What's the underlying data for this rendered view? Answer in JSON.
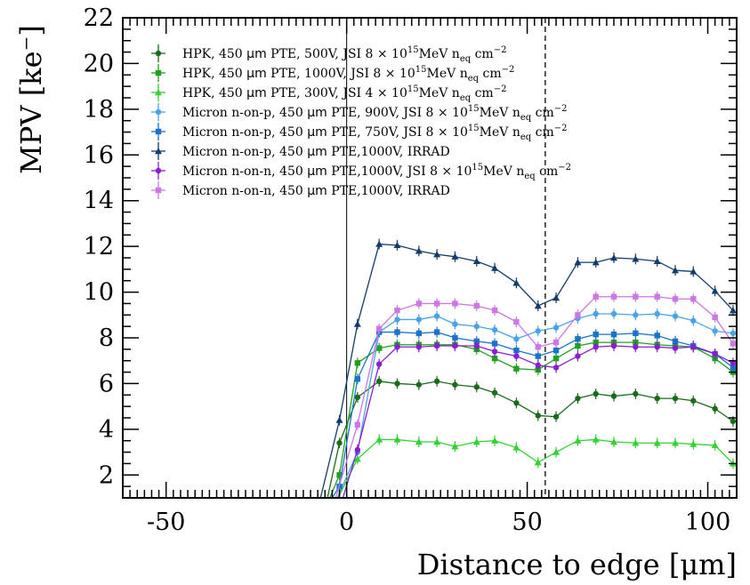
{
  "chart_data": {
    "type": "line",
    "title": "",
    "xlabel": "Distance to edge [μm]",
    "ylabel": "MPV [ke⁻]",
    "xlim": [
      -62,
      108
    ],
    "ylim": [
      1,
      22
    ],
    "x_ticks": [
      -50,
      0,
      50,
      100
    ],
    "x_tick_labels": [
      "-50",
      "0",
      "50",
      "100"
    ],
    "y_ticks": [
      2,
      4,
      6,
      8,
      10,
      12,
      14,
      16,
      18,
      20,
      22
    ],
    "y_tick_labels": [
      "2",
      "4",
      "6",
      "8",
      "10",
      "12",
      "14",
      "16",
      "18",
      "20",
      "22"
    ],
    "grid": false,
    "legend_position": "top-left",
    "reference_lines": [
      {
        "orientation": "vertical",
        "x": 0,
        "style": "solid"
      },
      {
        "orientation": "vertical",
        "x": 55,
        "style": "dashed"
      }
    ],
    "series": [
      {
        "name": "HPK, 450 μm PTE, 500V, JSI 8 × 10¹⁵MeV n_eq cm⁻²",
        "legend_parts": [
          "HPK, 450 ",
          "μm",
          " PTE, 500V, JSI 8 × 10",
          "15",
          "MeV n",
          "eq",
          " cm",
          "−2"
        ],
        "color": "#1a6b1a",
        "marker": "circle",
        "x": [
          -6,
          -2,
          3,
          9,
          14,
          20,
          25,
          30,
          36,
          41,
          47,
          53,
          58,
          64,
          69,
          74,
          80,
          86,
          91,
          96,
          102,
          107
        ],
        "y": [
          0.5,
          3.4,
          5.4,
          6.1,
          6.0,
          5.95,
          6.1,
          5.95,
          5.85,
          5.6,
          5.15,
          4.6,
          4.55,
          5.35,
          5.55,
          5.45,
          5.55,
          5.35,
          5.35,
          5.25,
          4.9,
          4.35
        ]
      },
      {
        "name": "HPK, 450 μm PTE, 1000V, JSI 8 × 10¹⁵MeV n_eq cm⁻²",
        "legend_parts": [
          "HPK, 450 ",
          "μm",
          " PTE, 1000V, JSI 8 × 10",
          "15",
          "MeV n",
          "eq",
          " cm",
          "−2"
        ],
        "color": "#1fa01f",
        "marker": "square",
        "x": [
          -6,
          -2,
          3,
          9,
          14,
          20,
          25,
          30,
          36,
          41,
          47,
          53,
          58,
          64,
          69,
          74,
          80,
          86,
          91,
          96,
          102,
          107
        ],
        "y": [
          0.5,
          2.0,
          6.9,
          7.55,
          7.7,
          7.7,
          7.7,
          7.7,
          7.5,
          7.1,
          6.65,
          6.6,
          7.1,
          7.65,
          7.8,
          7.8,
          7.8,
          7.7,
          7.65,
          7.6,
          7.1,
          6.5
        ]
      },
      {
        "name": "HPK, 450 μm PTE, 300V, JSI 4 × 10¹⁵MeV n_eq cm⁻²",
        "legend_parts": [
          "HPK, 450 ",
          "μm",
          " PTE, 300V, JSI 4 × 10",
          "15",
          "MeV n",
          "eq",
          " cm",
          "−2"
        ],
        "color": "#33d233",
        "marker": "triangle",
        "x": [
          -4,
          3,
          9,
          14,
          20,
          25,
          30,
          36,
          41,
          47,
          53,
          58,
          64,
          69,
          74,
          80,
          86,
          91,
          96,
          102,
          107
        ],
        "y": [
          0.5,
          2.7,
          3.55,
          3.55,
          3.45,
          3.45,
          3.25,
          3.45,
          3.5,
          3.2,
          2.55,
          3.0,
          3.5,
          3.55,
          3.45,
          3.4,
          3.4,
          3.4,
          3.35,
          3.3,
          2.5
        ]
      },
      {
        "name": "Micron n-on-p, 450 μm PTE, 900V, JSI 8 × 10¹⁵MeV n_eq cm⁻²",
        "legend_parts": [
          "Micron n-on-p, 450 ",
          "μm",
          " PTE, 900V, JSI 8 × 10",
          "15",
          "MeV n",
          "eq",
          " cm",
          "−2"
        ],
        "color": "#4aa3e8",
        "marker": "circle",
        "x": [
          -4,
          3,
          9,
          14,
          20,
          25,
          30,
          36,
          41,
          47,
          53,
          58,
          64,
          69,
          74,
          80,
          86,
          91,
          96,
          102,
          107
        ],
        "y": [
          0.5,
          3.0,
          8.25,
          8.8,
          8.8,
          8.95,
          8.6,
          8.5,
          8.35,
          7.95,
          8.3,
          8.45,
          8.85,
          9.05,
          9.05,
          9.0,
          9.05,
          8.95,
          8.75,
          8.3,
          8.2
        ]
      },
      {
        "name": "Micron n-on-p, 450 μm PTE, 750V, JSI 8 × 10¹⁵MeV n_eq cm⁻²",
        "legend_parts": [
          "Micron n-on-p, 450 ",
          "μm",
          " PTE, 750V, JSI 8 × 10",
          "15",
          "MeV n",
          "eq",
          " cm",
          "−2"
        ],
        "color": "#1a72c9",
        "marker": "square",
        "x": [
          -6,
          -2,
          3,
          9,
          14,
          20,
          25,
          30,
          36,
          41,
          47,
          53,
          58,
          64,
          69,
          74,
          80,
          86,
          91,
          96,
          102,
          107
        ],
        "y": [
          0.5,
          1.5,
          6.2,
          8.25,
          8.25,
          8.2,
          8.25,
          8.0,
          7.85,
          7.75,
          7.45,
          7.2,
          7.45,
          7.95,
          8.15,
          8.15,
          8.2,
          8.1,
          7.85,
          7.65,
          7.3,
          6.7
        ]
      },
      {
        "name": "Micron n-on-p, 450 μm PTE,1000V, IRRAD",
        "legend_parts": [
          "Micron n-on-p, 450 ",
          "μm",
          " PTE,1000V, IRRAD",
          "",
          "",
          "",
          "",
          ""
        ],
        "color": "#123d6b",
        "marker": "triangle",
        "x": [
          -8,
          -2,
          3,
          9,
          14,
          20,
          25,
          30,
          36,
          41,
          47,
          53,
          58,
          64,
          69,
          74,
          80,
          86,
          91,
          96,
          102,
          107
        ],
        "y": [
          0.5,
          4.4,
          8.6,
          12.1,
          12.05,
          11.8,
          11.65,
          11.55,
          11.35,
          11.05,
          10.4,
          9.4,
          9.75,
          11.3,
          11.3,
          11.5,
          11.45,
          11.35,
          10.95,
          10.9,
          10.05,
          9.2
        ]
      },
      {
        "name": "Micron n-on-n, 450 μm PTE,1000V, JSI 8 × 10¹⁵MeV n_eq cm⁻²",
        "legend_parts": [
          "Micron n-on-n, 450 ",
          "μm",
          " PTE,1000V, JSI 8 × 10",
          "15",
          "MeV n",
          "eq",
          " cm",
          "−2"
        ],
        "color": "#8a1dd1",
        "marker": "circle",
        "x": [
          -2,
          3,
          9,
          14,
          20,
          25,
          30,
          36,
          41,
          47,
          53,
          58,
          64,
          69,
          74,
          80,
          86,
          91,
          96,
          102,
          107
        ],
        "y": [
          0.5,
          3.1,
          6.85,
          7.6,
          7.6,
          7.65,
          7.65,
          7.65,
          7.4,
          7.2,
          6.8,
          6.7,
          7.2,
          7.6,
          7.65,
          7.6,
          7.6,
          7.55,
          7.6,
          7.3,
          6.9
        ]
      },
      {
        "name": "Micron n-on-n, 450 μm PTE,1000V, IRRAD",
        "legend_parts": [
          "Micron n-on-n, 450 ",
          "μm",
          " PTE,1000V, IRRAD",
          "",
          "",
          "",
          "",
          ""
        ],
        "color": "#cc77e6",
        "marker": "square",
        "x": [
          -4,
          3,
          9,
          14,
          20,
          25,
          30,
          36,
          41,
          47,
          53,
          58,
          64,
          69,
          74,
          80,
          86,
          91,
          96,
          102,
          107
        ],
        "y": [
          0.5,
          4.2,
          8.4,
          9.2,
          9.5,
          9.5,
          9.5,
          9.4,
          9.2,
          8.7,
          7.6,
          7.8,
          9.0,
          9.8,
          9.8,
          9.8,
          9.8,
          9.7,
          9.7,
          8.9,
          7.75
        ]
      }
    ]
  }
}
